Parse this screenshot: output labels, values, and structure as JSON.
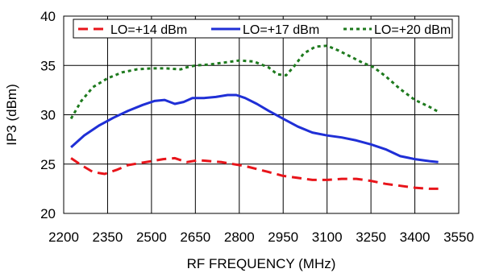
{
  "chart_data": {
    "type": "line",
    "xlabel": "RF FREQUENCY (MHz)",
    "ylabel": "IP3 (dBm)",
    "xlim": [
      2200,
      3550
    ],
    "ylim": [
      20,
      40
    ],
    "xticks": [
      2200,
      2350,
      2500,
      2650,
      2800,
      2950,
      3100,
      3250,
      3400,
      3550
    ],
    "yticks": [
      20,
      25,
      30,
      35,
      40
    ],
    "grid": true,
    "legend": "top",
    "series": [
      {
        "name": "LO=+14 dBm",
        "color": "#e8141a",
        "dash": "dashed",
        "x": [
          2225,
          2260,
          2300,
          2340,
          2380,
          2420,
          2460,
          2500,
          2540,
          2580,
          2620,
          2660,
          2700,
          2740,
          2780,
          2820,
          2860,
          2900,
          2950,
          3000,
          3050,
          3100,
          3150,
          3200,
          3250,
          3300,
          3350,
          3400,
          3450,
          3480
        ],
        "y": [
          25.6,
          24.9,
          24.2,
          24.0,
          24.4,
          24.9,
          25.1,
          25.3,
          25.5,
          25.6,
          25.2,
          25.4,
          25.3,
          25.2,
          25.0,
          24.8,
          24.5,
          24.2,
          23.8,
          23.6,
          23.4,
          23.4,
          23.5,
          23.5,
          23.3,
          23.0,
          22.8,
          22.6,
          22.5,
          22.5
        ]
      },
      {
        "name": "LO=+17 dBm",
        "color": "#1f2fd6",
        "dash": "solid",
        "x": [
          2225,
          2270,
          2320,
          2370,
          2420,
          2470,
          2510,
          2545,
          2580,
          2610,
          2640,
          2680,
          2720,
          2760,
          2790,
          2820,
          2860,
          2900,
          2950,
          3000,
          3050,
          3100,
          3150,
          3200,
          3250,
          3300,
          3350,
          3400,
          3450,
          3480
        ],
        "y": [
          26.7,
          27.9,
          28.9,
          29.7,
          30.4,
          31.0,
          31.4,
          31.5,
          31.1,
          31.3,
          31.7,
          31.7,
          31.8,
          32.0,
          32.0,
          31.7,
          31.1,
          30.4,
          29.6,
          28.8,
          28.2,
          27.9,
          27.7,
          27.4,
          27.0,
          26.5,
          25.8,
          25.5,
          25.3,
          25.2
        ]
      },
      {
        "name": "LO=+20 dBm",
        "color": "#1e7a1e",
        "dash": "dotted",
        "x": [
          2225,
          2260,
          2300,
          2350,
          2400,
          2450,
          2500,
          2550,
          2600,
          2620,
          2650,
          2700,
          2750,
          2800,
          2850,
          2900,
          2930,
          2960,
          2990,
          3020,
          3060,
          3100,
          3140,
          3180,
          3220,
          3260,
          3300,
          3350,
          3400,
          3450,
          3480
        ],
        "y": [
          29.6,
          31.4,
          32.8,
          33.7,
          34.3,
          34.6,
          34.7,
          34.7,
          34.6,
          34.8,
          35.0,
          35.1,
          35.3,
          35.5,
          35.4,
          34.8,
          34.1,
          34.0,
          35.0,
          36.2,
          36.9,
          37.0,
          36.5,
          35.9,
          35.3,
          34.8,
          33.9,
          32.6,
          31.5,
          30.8,
          30.3
        ]
      }
    ]
  }
}
